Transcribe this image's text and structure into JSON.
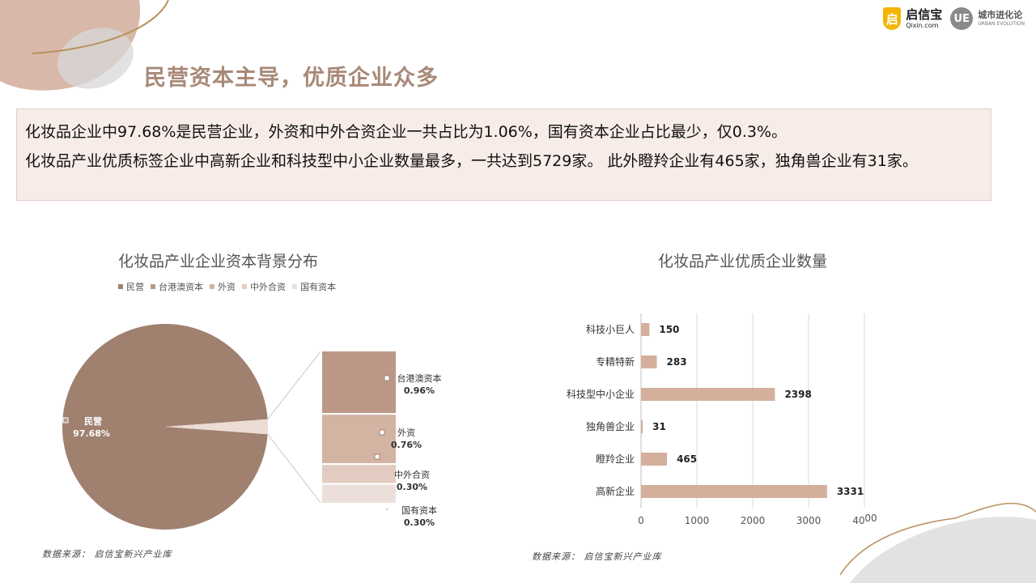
{
  "header": {
    "title": "民营资本主导，优质企业众多",
    "logo_qixin_cn": "启信宝",
    "logo_qixin_en": "Qixin.com",
    "logo_ue_mark": "UE",
    "logo_ue_cn": "城市进化论",
    "logo_ue_en": "URBAN EVOLUTION"
  },
  "summary": {
    "line1": "化妆品企业中97.68%是民营企业，外资和中外合资企业一共占比为1.06%，国有资本企业占比最少，仅0.3%。",
    "line2": "化妆品产业优质标签企业中高新企业和科技型中小企业数量最多，一共达到5729家。  此外瞪羚企业有465家，独角兽企业有31家。"
  },
  "colors": {
    "title": "#a88978",
    "pie_main": "#a0806f",
    "bar": "#d4b09c",
    "summary_bg": "#f7ece8"
  },
  "chart_data": [
    {
      "type": "pie",
      "title": "化妆品产业企业资本背景分布",
      "legend_position": "top",
      "slices": [
        {
          "label": "民营",
          "value": 97.68,
          "display": "97.68%",
          "color": "#a0806f"
        },
        {
          "label": "台港澳资本",
          "value": 0.96,
          "display": "0.96%",
          "color": "#bb9886"
        },
        {
          "label": "外资",
          "value": 0.76,
          "display": "0.76%",
          "color": "#d3b3a2"
        },
        {
          "label": "中外合资",
          "value": 0.3,
          "display": "0.30%",
          "color": "#e2cbc0"
        },
        {
          "label": "国有资本",
          "value": 0.3,
          "display": "0.30%",
          "color": "#ecdfd9"
        }
      ],
      "source": "数据来源：  启信宝新兴产业库"
    },
    {
      "type": "bar",
      "orientation": "horizontal",
      "title": "化妆品产业优质企业数量",
      "categories": [
        "科技小巨人",
        "专精特新",
        "科技型中小企业",
        "独角兽企业",
        "瞪羚企业",
        "高新企业"
      ],
      "values": [
        150,
        283,
        2398,
        31,
        465,
        3331
      ],
      "xlim": [
        0,
        4000
      ],
      "xticks": [
        "0",
        "1000",
        "2000",
        "3000",
        "40",
        "00"
      ],
      "grid": true,
      "source": "数据来源：  启信宝新兴产业库"
    }
  ]
}
